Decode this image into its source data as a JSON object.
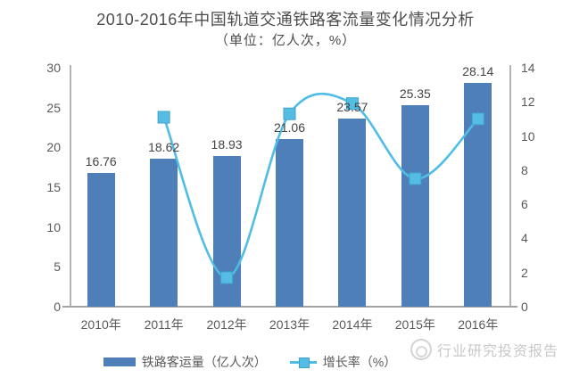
{
  "header": {
    "title": "2010-2016年中国轨道交通铁路客流量变化情况分析",
    "subtitle": "（单位：亿人次，%）"
  },
  "colors": {
    "bar": "#4e7fb8",
    "line": "#4fbde6",
    "marker": "#55bce4",
    "marker_edge": "#3fa3cc",
    "axis": "#b3b3b3",
    "tick_text": "#595959",
    "watermark": "#c8c8c8"
  },
  "legend": {
    "items": [
      {
        "label": "铁路客运量（亿人次）",
        "type": "bar"
      },
      {
        "label": "增长率（%）",
        "type": "line"
      }
    ]
  },
  "watermark": {
    "logo": "circle-logo",
    "text": "行业研究投资报告"
  },
  "chart_data": {
    "type": "bar+line",
    "title": "2010-2016年中国轨道交通铁路客流量变化情况分析",
    "subtitle": "（单位：亿人次，%）",
    "categories": [
      "2010年",
      "2011年",
      "2012年",
      "2013年",
      "2014年",
      "2015年",
      "2016年"
    ],
    "series": [
      {
        "name": "铁路客运量（亿人次）",
        "type": "bar",
        "axis": "left",
        "values": [
          16.76,
          18.62,
          18.93,
          21.06,
          23.57,
          25.35,
          28.14
        ]
      },
      {
        "name": "增长率（%）",
        "type": "line",
        "axis": "right",
        "marker": "square",
        "values": [
          null,
          11.1,
          1.7,
          11.3,
          11.9,
          7.5,
          11.0
        ]
      }
    ],
    "left_axis": {
      "min": 0,
      "max": 30,
      "ticks": [
        0,
        5,
        10,
        15,
        20,
        25,
        30
      ]
    },
    "right_axis": {
      "min": 0,
      "max": 14,
      "ticks": [
        0,
        2,
        4,
        6,
        8,
        10,
        12,
        14
      ]
    },
    "grid": false,
    "legend_position": "bottom"
  }
}
